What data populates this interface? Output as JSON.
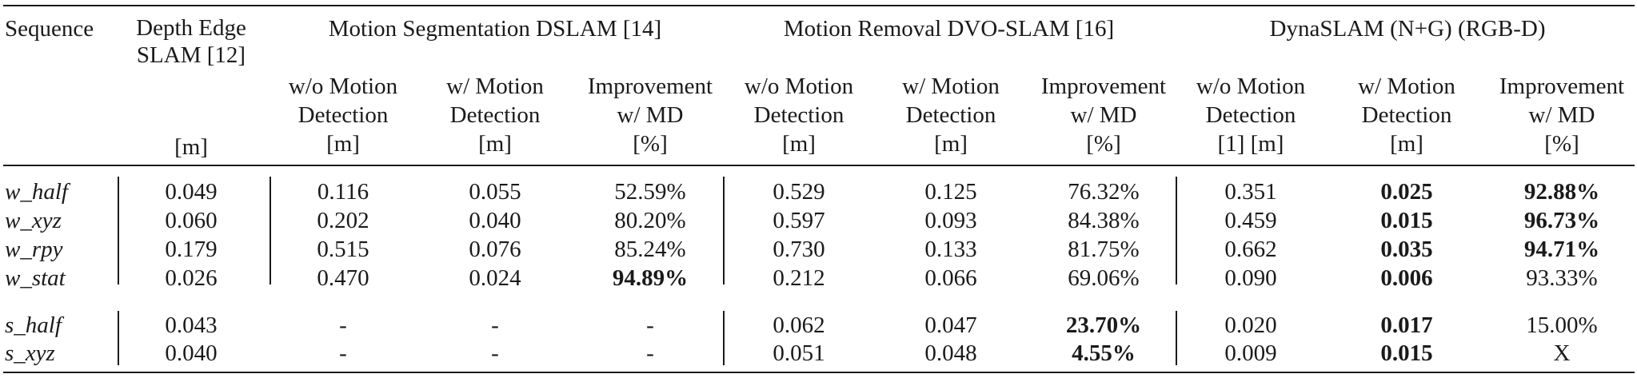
{
  "header": {
    "sequence": "Sequence",
    "depth_edge": [
      "Depth Edge",
      "SLAM [12]"
    ],
    "depth_unit": "[m]",
    "group1": "Motion Segmentation DSLAM [14]",
    "group2": "Motion Removal DVO-SLAM [16]",
    "group3": "DynaSLAM (N+G) (RGB-D)",
    "sub": {
      "wo": [
        "w/o Motion",
        "Detection"
      ],
      "w": [
        "w/ Motion",
        "Detection"
      ],
      "imp": [
        "Improvement",
        "w/ MD"
      ],
      "unit_m": "[m]",
      "unit_pct": "[%]",
      "unit_1m": "[1] [m]"
    }
  },
  "rows": [
    {
      "seq": "w_half",
      "depth": "0.049",
      "ms_wo": "0.116",
      "ms_w": "0.055",
      "ms_imp": "52.59%",
      "mr_wo": "0.529",
      "mr_w": "0.125",
      "mr_imp": "76.32%",
      "dy_wo": "0.351",
      "dy_w": "0.025",
      "dy_imp": "92.88%"
    },
    {
      "seq": "w_xyz",
      "depth": "0.060",
      "ms_wo": "0.202",
      "ms_w": "0.040",
      "ms_imp": "80.20%",
      "mr_wo": "0.597",
      "mr_w": "0.093",
      "mr_imp": "84.38%",
      "dy_wo": "0.459",
      "dy_w": "0.015",
      "dy_imp": "96.73%"
    },
    {
      "seq": "w_rpy",
      "depth": "0.179",
      "ms_wo": "0.515",
      "ms_w": "0.076",
      "ms_imp": "85.24%",
      "mr_wo": "0.730",
      "mr_w": "0.133",
      "mr_imp": "81.75%",
      "dy_wo": "0.662",
      "dy_w": "0.035",
      "dy_imp": "94.71%"
    },
    {
      "seq": "w_stat",
      "depth": "0.026",
      "ms_wo": "0.470",
      "ms_w": "0.024",
      "ms_imp": "94.89%",
      "mr_wo": "0.212",
      "mr_w": "0.066",
      "mr_imp": "69.06%",
      "dy_wo": "0.090",
      "dy_w": "0.006",
      "dy_imp": "93.33%"
    },
    {
      "seq": "s_half",
      "depth": "0.043",
      "ms_wo": "-",
      "ms_w": "-",
      "ms_imp": "-",
      "mr_wo": "0.062",
      "mr_w": "0.047",
      "mr_imp": "23.70%",
      "dy_wo": "0.020",
      "dy_w": "0.017",
      "dy_imp": "15.00%"
    },
    {
      "seq": "s_xyz",
      "depth": "0.040",
      "ms_wo": "-",
      "ms_w": "-",
      "ms_imp": "-",
      "mr_wo": "0.051",
      "mr_w": "0.048",
      "mr_imp": "4.55%",
      "dy_wo": "0.009",
      "dy_w": "0.015",
      "dy_imp": "X"
    }
  ]
}
